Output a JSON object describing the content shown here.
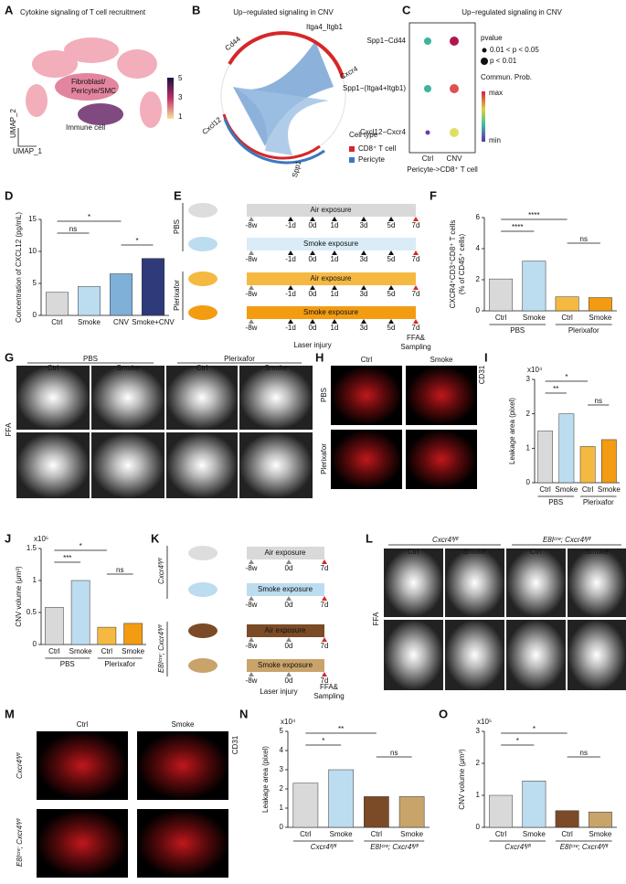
{
  "letters": [
    "A",
    "B",
    "C",
    "D",
    "E",
    "F",
    "G",
    "H",
    "I",
    "J",
    "K",
    "L",
    "M",
    "N",
    "O"
  ],
  "panel_a": {
    "title": "Cytokine signaling of T cell recruitment",
    "cluster_1": "Fibroblast/",
    "cluster_1b": "Pericyte/SMC",
    "cluster_2": "Immune cell",
    "axis_y": "UMAP_2",
    "axis_x": "UMAP_1",
    "colorbar": [
      5,
      3,
      1
    ]
  },
  "panel_b": {
    "title": "Up−regulated signaling in CNV",
    "genes": [
      "Cd44",
      "Itga4_Itgb1",
      "Cxcr4",
      "Cxcl12",
      "Spp1"
    ],
    "legend_title": "Cell type",
    "legend": [
      "CD8⁺ T cell",
      "Pericyte"
    ]
  },
  "panel_c": {
    "title": "Up−regulated signaling in CNV",
    "rows": [
      "Spp1−Cd44",
      "Spp1−(Itga4+Itgb1)",
      "Cxcl12−Cxcr4"
    ],
    "columns": [
      "Ctrl",
      "CNV"
    ],
    "pvalue_title": "pvalue",
    "pvalue_items": [
      "0.01 < p < 0.05",
      "p < 0.01"
    ],
    "prob_title": "Commun. Prob.",
    "prob_max": "max",
    "prob_min": "min",
    "caption": "Pericyte->CD8⁺ T cell"
  },
  "panel_e": {
    "groups": [
      "PBS",
      "Plerixafor"
    ],
    "bars": [
      "Air exposure",
      "Smoke exposure",
      "Air exposure",
      "Smoke exposure"
    ],
    "times": [
      "-8w",
      "-1d",
      "0d",
      "1d",
      "3d",
      "5d",
      "7d"
    ],
    "laser": "Laser injury",
    "ffa": "FFA&",
    "sampling": "Sampling"
  },
  "panel_g": {
    "groups": [
      "PBS",
      "Plerixafor"
    ],
    "conditions": [
      "Ctrl",
      "Smoke",
      "Ctrl",
      "Smoke"
    ],
    "row_label": "FFA"
  },
  "panel_h": {
    "columns": [
      "Ctrl",
      "Smoke"
    ],
    "rows": [
      "PBS",
      "Plerixafor"
    ],
    "stain": "CD31"
  },
  "panel_k": {
    "groups": [
      "Cxcr4ᶠˡ/ᶠˡ",
      "E8Iᶜʳᵉ; Cxcr4ᶠˡ/ᶠˡ"
    ],
    "bars": [
      "Air exposure",
      "Smoke exposure",
      "Air exposure",
      "Smoke exposure"
    ],
    "times": [
      "-8w",
      "0d",
      "7d"
    ],
    "laser": "Laser injury",
    "ffa": "FFA&",
    "sampling": "Sampling"
  },
  "panel_l": {
    "groups": [
      "Cxcr4ᶠˡ/ᶠˡ",
      "E8Iᶜʳᵉ; Cxcr4ᶠˡ/ᶠˡ"
    ],
    "conditions": [
      "Ctrl",
      "Smoke",
      "Ctrl",
      "Smoke"
    ],
    "row_label": "FFA"
  },
  "panel_m": {
    "columns": [
      "Ctrl",
      "Smoke"
    ],
    "rows": [
      "Cxcr4ᶠˡ/ᶠˡ",
      "E8Iᶜʳᵉ; Cxcr4ᶠˡ/ᶠˡ"
    ],
    "stain": "CD31"
  },
  "chart_data": [
    {
      "type": "bar",
      "ylabel": [
        "Concentration of CXCL12 (pg/mL)"
      ],
      "categories": [
        "Ctrl",
        "Smoke",
        "CNV",
        "Smoke+CNV"
      ],
      "values": [
        3.6,
        4.5,
        6.5,
        8.9
      ],
      "colors": [
        "#d9d9d9",
        "#bcdcf0",
        "#7fb0d8",
        "#2e3a7a"
      ],
      "ylim": [
        0,
        15
      ],
      "yticks": [
        0,
        5,
        10,
        15
      ],
      "annotations": [
        {
          "text": "*",
          "between": [
            0,
            2
          ]
        },
        {
          "text": "ns",
          "between": [
            0,
            1
          ]
        },
        {
          "text": "*",
          "between": [
            2,
            3
          ]
        }
      ]
    },
    {
      "type": "bar",
      "ylabel": [
        "CXCR4⁺CD3⁺CD8⁺ T cells",
        "(% of CD45⁺ cells)"
      ],
      "categories": [
        "Ctrl",
        "Smoke",
        "Ctrl",
        "Smoke"
      ],
      "groups": [
        "PBS",
        "Plerixafor"
      ],
      "values": [
        2.05,
        3.2,
        0.9,
        0.85
      ],
      "colors": [
        "#d9d9d9",
        "#bcdcf0",
        "#f5b942",
        "#f39c12"
      ],
      "ylim": [
        0,
        6
      ],
      "yticks": [
        0,
        2,
        4,
        6
      ],
      "annotations": [
        {
          "text": "****",
          "between": [
            0,
            2
          ]
        },
        {
          "text": "****",
          "between": [
            0,
            1
          ]
        },
        {
          "text": "ns",
          "between": [
            2,
            3
          ]
        }
      ]
    },
    {
      "type": "bar",
      "ylabel": [
        "Leakage area (pixel)"
      ],
      "multiplier": "x10⁴",
      "categories": [
        "Ctrl",
        "Smoke",
        "Ctrl",
        "Smoke"
      ],
      "groups": [
        "PBS",
        "Plerixafor"
      ],
      "values": [
        1.5,
        2.0,
        1.05,
        1.25
      ],
      "colors": [
        "#d9d9d9",
        "#bcdcf0",
        "#f5b942",
        "#f39c12"
      ],
      "ylim": [
        0,
        3
      ],
      "yticks": [
        0,
        1,
        2,
        3
      ],
      "annotations": [
        {
          "text": "*",
          "between": [
            0,
            2
          ]
        },
        {
          "text": "**",
          "between": [
            0,
            1
          ]
        },
        {
          "text": "ns",
          "between": [
            2,
            3
          ]
        }
      ]
    },
    {
      "type": "bar",
      "ylabel": [
        "CNV volume (μm³)"
      ],
      "multiplier": "x10⁵",
      "categories": [
        "Ctrl",
        "Smoke",
        "Ctrl",
        "Smoke"
      ],
      "groups": [
        "PBS",
        "Plerixafor"
      ],
      "values": [
        0.58,
        1.0,
        0.27,
        0.33
      ],
      "colors": [
        "#d9d9d9",
        "#bcdcf0",
        "#f5b942",
        "#f39c12"
      ],
      "ylim": [
        0,
        1.5
      ],
      "yticks": [
        0,
        0.5,
        1,
        1.5
      ],
      "annotations": [
        {
          "text": "*",
          "between": [
            0,
            2
          ]
        },
        {
          "text": "***",
          "between": [
            0,
            1
          ]
        },
        {
          "text": "ns",
          "between": [
            2,
            3
          ]
        }
      ]
    },
    {
      "type": "bar",
      "ylabel": [
        "Leakage area (pixel)"
      ],
      "multiplier": "x10⁴",
      "categories": [
        "Ctrl",
        "Smoke",
        "Ctrl",
        "Smoke"
      ],
      "groups": [
        "Cxcr4ᶠˡ/ᶠˡ",
        "E8Iᶜʳᵉ; Cxcr4ᶠˡ/ᶠˡ"
      ],
      "values": [
        2.3,
        3.0,
        1.6,
        1.6
      ],
      "colors": [
        "#d9d9d9",
        "#bcdcf0",
        "#7b4a26",
        "#c9a46a"
      ],
      "ylim": [
        0,
        5
      ],
      "yticks": [
        0,
        1,
        2,
        3,
        4,
        5
      ],
      "annotations": [
        {
          "text": "**",
          "between": [
            0,
            2
          ]
        },
        {
          "text": "*",
          "between": [
            0,
            1
          ]
        },
        {
          "text": "ns",
          "between": [
            2,
            3
          ]
        }
      ]
    },
    {
      "type": "bar",
      "ylabel": [
        "CNV volume (μm³)"
      ],
      "multiplier": "x10⁵",
      "categories": [
        "Ctrl",
        "Smoke",
        "Ctrl",
        "Smoke"
      ],
      "groups": [
        "Cxcr4ᶠˡ/ᶠˡ",
        "E8Iᶜʳᵉ; Cxcr4ᶠˡ/ᶠˡ"
      ],
      "values": [
        1.0,
        1.45,
        0.52,
        0.48
      ],
      "colors": [
        "#d9d9d9",
        "#bcdcf0",
        "#7b4a26",
        "#c9a46a"
      ],
      "ylim": [
        0,
        3
      ],
      "yticks": [
        0,
        1,
        2,
        3
      ],
      "annotations": [
        {
          "text": "*",
          "between": [
            0,
            2
          ]
        },
        {
          "text": "*",
          "between": [
            0,
            1
          ]
        },
        {
          "text": "ns",
          "between": [
            2,
            3
          ]
        }
      ]
    }
  ]
}
